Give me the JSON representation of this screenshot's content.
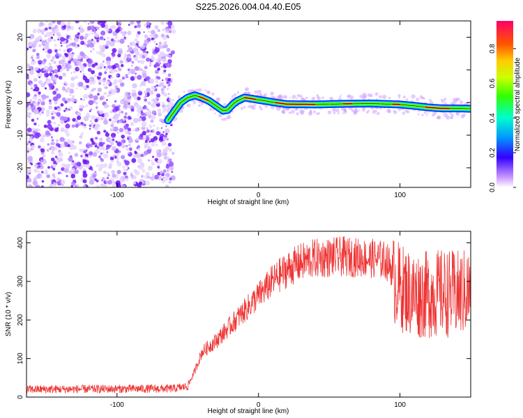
{
  "title": "S225.2026.004.04.40.E05",
  "chart_data": [
    {
      "type": "heatmap",
      "xlabel": "Height of straight line (km)",
      "ylabel": "Frequency (Hz)",
      "xlim": [
        -164,
        150
      ],
      "ylim": [
        -26,
        25
      ],
      "xticks": [
        -100,
        0,
        100
      ],
      "xtick_labels": [
        "-100",
        "0",
        "100"
      ],
      "yticks": [
        -20,
        -10,
        0,
        10,
        20
      ],
      "ytick_labels": [
        "-20",
        "-10",
        "0",
        "10",
        "20"
      ],
      "noise_region_x": [
        -164,
        -60
      ],
      "ridge": {
        "x": [
          -64,
          -60,
          -55,
          -50,
          -45,
          -40,
          -35,
          -30,
          -25,
          -22,
          -18,
          -15,
          -10,
          -5,
          0,
          5,
          10,
          20,
          40,
          60,
          80,
          100,
          110,
          120,
          130,
          140,
          150
        ],
        "y": [
          -5.5,
          -3,
          0,
          1.5,
          2.2,
          1.5,
          0.5,
          -1,
          -2.5,
          -2.3,
          -0.5,
          0.5,
          1.5,
          1.2,
          0.8,
          0.5,
          0.1,
          -0.5,
          -0.6,
          -0.4,
          -0.3,
          -0.6,
          -1,
          -1.5,
          -1.8,
          -1.8,
          -1.9
        ]
      },
      "colorbar": {
        "label": "Normalized spectral amplitude",
        "range": [
          0,
          0.96
        ],
        "ticks": [
          0.0,
          0.2,
          0.4,
          0.6,
          0.8
        ],
        "tick_labels": [
          "0.0",
          "0.2",
          "0.4",
          "0.6",
          "0.8"
        ]
      },
      "grid": false
    },
    {
      "type": "line",
      "xlabel": "Height of straight line (km)",
      "ylabel": "SNR (10 * v/v)",
      "xlim": [
        -164,
        150
      ],
      "ylim": [
        0,
        430
      ],
      "xticks": [
        -100,
        0,
        100
      ],
      "xtick_labels": [
        "-100",
        "0",
        "100"
      ],
      "yticks": [
        0,
        100,
        200,
        300,
        400
      ],
      "ytick_labels": [
        "0",
        "100",
        "200",
        "300",
        "400"
      ],
      "series": [
        {
          "color": "#ee3333",
          "envelope_x": [
            -164,
            -60,
            -50,
            -45,
            -40,
            -30,
            -20,
            -10,
            0,
            10,
            20,
            30,
            40,
            60,
            80,
            90,
            95,
            100,
            110,
            120,
            130,
            140,
            150
          ],
          "envelope_y": [
            20,
            22,
            28,
            70,
            120,
            150,
            190,
            230,
            270,
            310,
            340,
            360,
            370,
            375,
            370,
            365,
            340,
            320,
            300,
            300,
            305,
            300,
            310
          ]
        }
      ],
      "grid": false
    }
  ]
}
